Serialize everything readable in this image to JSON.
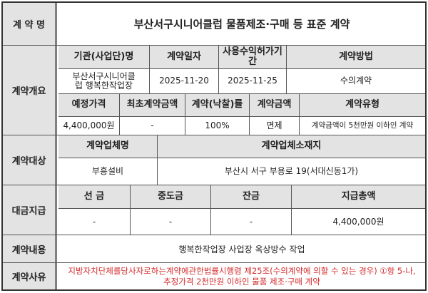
{
  "title": {
    "label": "계 약 명",
    "value": "부산서구시니어클럽 물품제조·구매 등 표준 계약"
  },
  "overview": {
    "label": "계약개요",
    "headers1": [
      "기관(사업단)명",
      "계약일자",
      "사용수익허가기간",
      "계약방법"
    ],
    "values1": [
      "부산서구시니어클럽 행복한작업장",
      "2025-11-20",
      "2025-11-25",
      "수의계약"
    ],
    "headers2": [
      "예정가격",
      "최초계약금액",
      "계약(낙찰)률",
      "계약금액",
      "계약유형"
    ],
    "values2": [
      "4,400,000원",
      "-",
      "100%",
      "면제",
      "계약금액이 5천만원 이하인 계약"
    ]
  },
  "target": {
    "label": "계약대상",
    "headers": [
      "계약업체명",
      "계약업체소재지"
    ],
    "values": [
      "부흥설비",
      "부산시 서구 부용로 19(서대신동1가)"
    ]
  },
  "payment": {
    "label": "대금지급",
    "headers": [
      "선 금",
      "중도금",
      "잔금",
      "지급총액"
    ],
    "values": [
      "-",
      "-",
      "-",
      "4,400,000원"
    ]
  },
  "content": {
    "label": "계약내용",
    "value": "행복한작업장 사업장 옥상방수 작업"
  },
  "reason": {
    "label": "계약사유",
    "value": "지방자치단체를당사자로하는계약에관한법률시행령 제25조(수의계약에 의할 수 있는 경우) ①항 5-나, 추정가격 2천만원 이하인 물품 제조·구매 계약",
    "color": "#d42a2a"
  }
}
